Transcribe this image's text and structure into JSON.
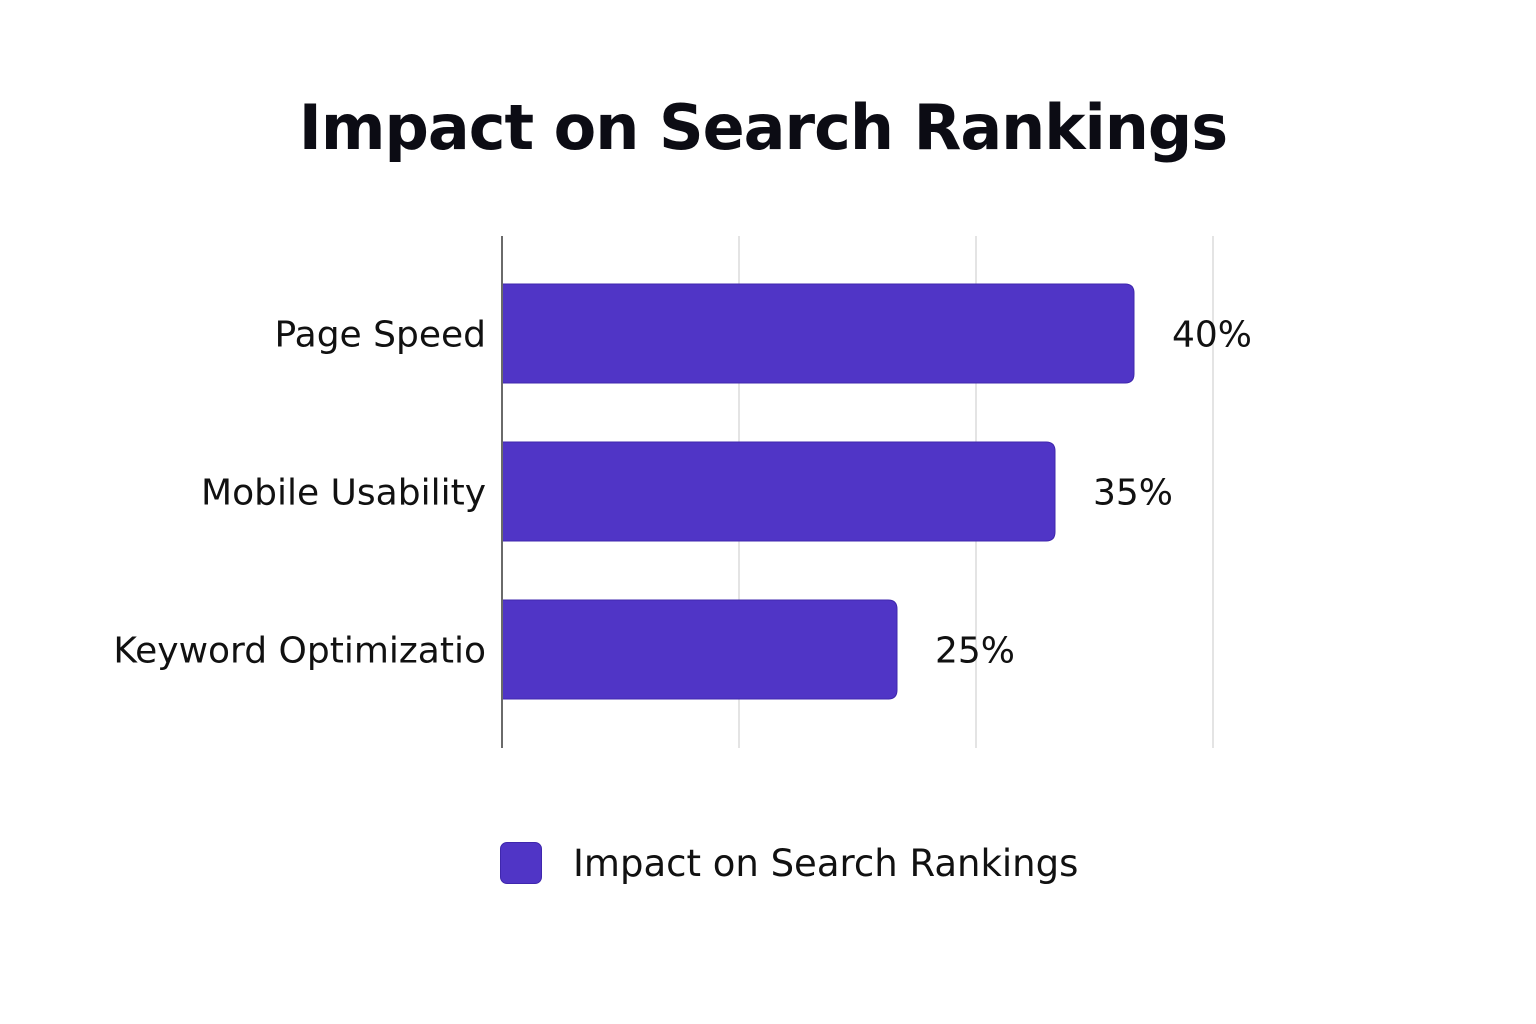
{
  "chart_data": {
    "type": "bar",
    "orientation": "horizontal",
    "title": "Impact on Search Rankings",
    "categories": [
      "Page Speed",
      "Mobile Usability",
      "Keyword Optimizatio"
    ],
    "series": [
      {
        "name": "Impact on Search Rankings",
        "values": [
          40,
          35,
          25
        ],
        "value_labels": [
          "40%",
          "35%",
          "25%"
        ],
        "color": "#5035c6"
      }
    ],
    "xlim": [
      0,
      45
    ],
    "grid": true,
    "legend_position": "bottom"
  }
}
